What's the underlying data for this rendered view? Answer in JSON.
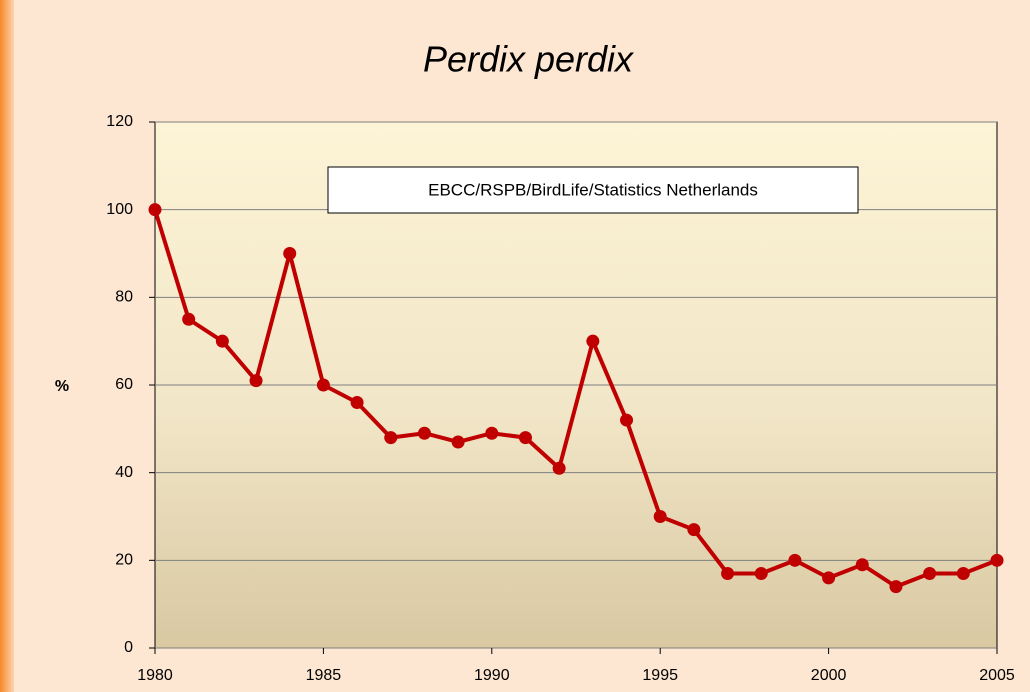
{
  "chart_data": {
    "type": "line",
    "title": "Perdix perdix",
    "ylabel": "%",
    "annotation": "EBCC/RSPB/BirdLife/Statistics Netherlands",
    "x": [
      1980,
      1981,
      1982,
      1983,
      1984,
      1985,
      1986,
      1987,
      1988,
      1989,
      1990,
      1991,
      1992,
      1993,
      1994,
      1995,
      1996,
      1997,
      1998,
      1999,
      2000,
      2001,
      2002,
      2003,
      2004,
      2005
    ],
    "values": [
      100,
      75,
      70,
      61,
      90,
      60,
      56,
      48,
      49,
      47,
      49,
      48,
      41,
      70,
      52,
      30,
      27,
      17,
      17,
      20,
      16,
      19,
      14,
      17,
      17,
      20
    ],
    "color": "#c00000",
    "xlim": [
      1980,
      2005
    ],
    "xticks": [
      1980,
      1985,
      1990,
      1995,
      2000,
      2005
    ],
    "ylim": [
      0,
      120
    ],
    "yticks": [
      0,
      20,
      40,
      60,
      80,
      100,
      120
    ],
    "grid": true
  }
}
